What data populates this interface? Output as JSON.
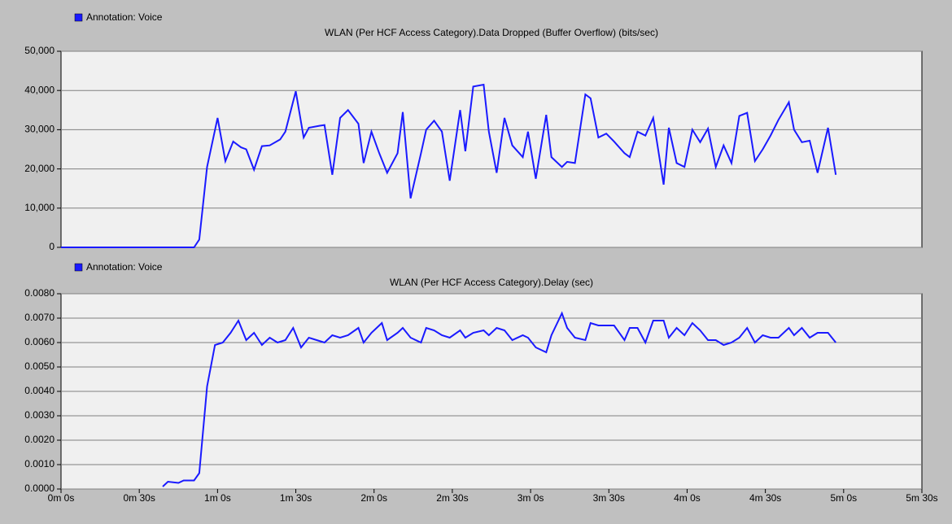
{
  "chart_data": [
    {
      "type": "line",
      "title": "WLAN (Per HCF Access Category).Data Dropped (Buffer Overflow) (bits/sec)",
      "x": [
        0,
        51,
        53,
        56,
        60,
        63,
        66,
        69,
        71,
        74,
        77,
        80,
        84,
        86,
        90,
        93,
        95,
        99,
        101,
        104,
        107,
        110,
        114,
        116,
        119,
        122,
        125,
        129,
        131,
        134,
        138,
        140,
        143,
        146,
        149,
        153,
        155,
        158,
        162,
        164,
        167,
        170,
        173,
        177,
        179,
        182,
        186,
        188,
        192,
        194,
        197,
        201,
        203,
        206,
        209,
        212,
        216,
        218,
        221,
        224,
        227,
        231,
        233,
        236,
        239,
        242,
        245,
        248,
        251,
        254,
        257,
        260,
        263,
        266,
        269,
        272,
        275,
        279,
        281,
        284,
        287,
        290,
        294,
        297
      ],
      "series": [
        {
          "name": "Annotation: Voice",
          "color": "#1a1aff",
          "values": [
            0,
            0,
            2000,
            20500,
            33000,
            22000,
            27000,
            25500,
            25000,
            19800,
            25800,
            26000,
            27500,
            29500,
            39800,
            28000,
            30500,
            31000,
            31200,
            18500,
            33000,
            35000,
            31500,
            21500,
            29500,
            24000,
            19000,
            24000,
            34500,
            12500,
            24000,
            30000,
            32300,
            29500,
            17000,
            35000,
            24500,
            41000,
            41500,
            29500,
            19000,
            33000,
            26000,
            23000,
            29500,
            17500,
            33800,
            23000,
            20500,
            21800,
            21500,
            39000,
            38000,
            28000,
            29000,
            27000,
            24000,
            23000,
            29500,
            28500,
            33000,
            16000,
            30500,
            21500,
            20500,
            30000,
            26800,
            30300,
            20500,
            26000,
            21500,
            33500,
            34300,
            22000,
            25000,
            28500,
            32500,
            37000,
            30000,
            26800,
            27200,
            19000,
            30500,
            18500
          ]
        }
      ],
      "xlim": [
        0,
        330
      ],
      "ylim": [
        0,
        50000
      ],
      "yticks": [
        0,
        {
          "value": 10000,
          "label": "10,000"
        },
        {
          "value": 20000,
          "label": "20,000"
        },
        {
          "value": 30000,
          "label": "30,000"
        },
        {
          "value": 40000,
          "label": "40,000"
        },
        {
          "value": 50000,
          "label": "50,000"
        }
      ],
      "grid": true
    },
    {
      "type": "line",
      "title": "WLAN (Per HCF Access Category).Delay (sec)",
      "x": [
        39,
        41,
        45,
        47,
        51,
        53,
        56,
        59,
        62,
        65,
        68,
        71,
        74,
        77,
        80,
        83,
        86,
        89,
        92,
        95,
        98,
        101,
        104,
        107,
        110,
        114,
        116,
        119,
        123,
        125,
        129,
        131,
        134,
        138,
        140,
        143,
        146,
        149,
        153,
        155,
        158,
        162,
        164,
        167,
        170,
        173,
        177,
        179,
        182,
        186,
        188,
        192,
        194,
        197,
        201,
        203,
        206,
        209,
        212,
        216,
        218,
        221,
        224,
        227,
        231,
        233,
        236,
        239,
        242,
        245,
        248,
        251,
        254,
        257,
        260,
        263,
        266,
        269,
        272,
        275,
        279,
        281,
        284,
        287,
        290,
        294,
        297
      ],
      "series": [
        {
          "name": "Annotation: Voice",
          "color": "#1a1aff",
          "values": [
            0.0001,
            0.0003,
            0.00025,
            0.00035,
            0.00035,
            0.00065,
            0.0042,
            0.0059,
            0.006,
            0.0064,
            0.0069,
            0.0061,
            0.0064,
            0.0059,
            0.0062,
            0.006,
            0.0061,
            0.0066,
            0.0058,
            0.0062,
            0.0061,
            0.006,
            0.0063,
            0.0062,
            0.0063,
            0.0066,
            0.006,
            0.0064,
            0.0068,
            0.0061,
            0.0064,
            0.0066,
            0.0062,
            0.006,
            0.0066,
            0.0065,
            0.0063,
            0.0062,
            0.0065,
            0.0062,
            0.0064,
            0.0065,
            0.0063,
            0.0066,
            0.0065,
            0.0061,
            0.0063,
            0.0062,
            0.0058,
            0.0056,
            0.0063,
            0.0072,
            0.0066,
            0.0062,
            0.0061,
            0.0068,
            0.0067,
            0.0067,
            0.0067,
            0.0061,
            0.0066,
            0.0066,
            0.006,
            0.0069,
            0.0069,
            0.0062,
            0.0066,
            0.0063,
            0.0068,
            0.0065,
            0.0061,
            0.0061,
            0.0059,
            0.006,
            0.0062,
            0.0066,
            0.006,
            0.0063,
            0.0062,
            0.0062,
            0.0066,
            0.0063,
            0.0066,
            0.0062,
            0.0064,
            0.0064,
            0.006
          ]
        }
      ],
      "xlim": [
        0,
        330
      ],
      "xticks": [
        {
          "value": 0,
          "label": "0m 0s"
        },
        {
          "value": 30,
          "label": "0m 30s"
        },
        {
          "value": 60,
          "label": "1m 0s"
        },
        {
          "value": 90,
          "label": "1m 30s"
        },
        {
          "value": 120,
          "label": "2m 0s"
        },
        {
          "value": 150,
          "label": "2m 30s"
        },
        {
          "value": 180,
          "label": "3m 0s"
        },
        {
          "value": 210,
          "label": "3m 30s"
        },
        {
          "value": 240,
          "label": "4m 0s"
        },
        {
          "value": 270,
          "label": "4m 30s"
        },
        {
          "value": 300,
          "label": "5m 0s"
        },
        {
          "value": 330,
          "label": "5m 30s"
        }
      ],
      "ylim": [
        0,
        0.008
      ],
      "yticks": [
        {
          "value": 0,
          "label": "0.0000"
        },
        {
          "value": 0.001,
          "label": "0.0010"
        },
        {
          "value": 0.002,
          "label": "0.0020"
        },
        {
          "value": 0.003,
          "label": "0.0030"
        },
        {
          "value": 0.004,
          "label": "0.0040"
        },
        {
          "value": 0.005,
          "label": "0.0050"
        },
        {
          "value": 0.006,
          "label": "0.0060"
        },
        {
          "value": 0.007,
          "label": "0.0070"
        },
        {
          "value": 0.008,
          "label": "0.0080"
        }
      ],
      "grid": true
    }
  ]
}
